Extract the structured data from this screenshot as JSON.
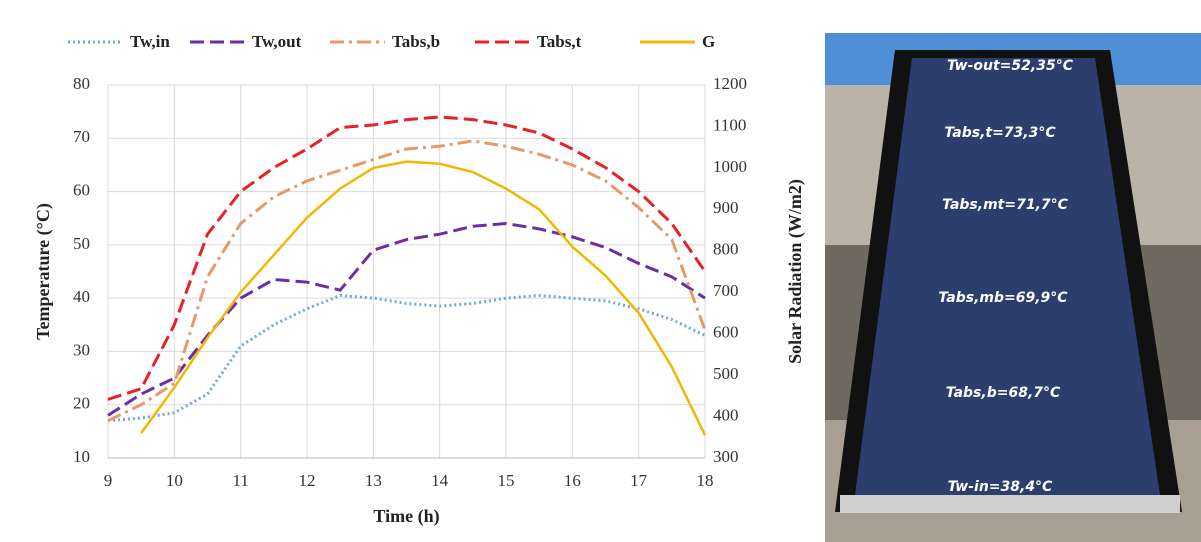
{
  "chart_data": {
    "type": "line",
    "x_label": "Time (h)",
    "y_label": "Temperature (°C)",
    "y2_label": "Solar Radiation (W/m2)",
    "x": [
      9,
      9.5,
      10,
      10.5,
      11,
      11.5,
      12,
      12.5,
      13,
      13.5,
      14,
      14.5,
      15,
      15.5,
      16,
      16.5,
      17,
      17.5,
      18
    ],
    "xlim": [
      9,
      18
    ],
    "xticks": [
      9,
      10,
      11,
      12,
      13,
      14,
      15,
      16,
      17,
      18
    ],
    "ylim": [
      10,
      80
    ],
    "yticks": [
      10,
      20,
      30,
      40,
      50,
      60,
      70,
      80
    ],
    "y2lim": [
      300,
      1200
    ],
    "y2ticks": [
      300,
      400,
      500,
      600,
      700,
      800,
      900,
      1000,
      1100,
      1200
    ],
    "grid": true,
    "series": [
      {
        "name": "Tw,in",
        "color": "#6fa8dc",
        "style": "dotted",
        "values": [
          17,
          17.5,
          18.5,
          22,
          31,
          35,
          38,
          40.5,
          40,
          39,
          38.5,
          39,
          40,
          40.5,
          40,
          39.5,
          38,
          36,
          33
        ]
      },
      {
        "name": "Tw,out",
        "color": "#6a2fa6",
        "style": "dashed",
        "values": [
          18,
          22,
          25,
          33,
          40,
          43.5,
          43,
          41.5,
          49,
          51,
          52,
          53.5,
          54,
          53,
          51.5,
          49.5,
          46.5,
          44,
          40
        ]
      },
      {
        "name": "Tabs,b",
        "color": "#e69a6a",
        "style": "dashdot",
        "values": [
          17,
          20,
          24,
          44,
          54,
          59,
          62,
          64,
          66,
          68,
          68.5,
          69.5,
          68.5,
          67,
          65,
          62,
          57,
          51,
          34
        ]
      },
      {
        "name": "Tabs,t",
        "color": "#e8202a",
        "style": "dashed",
        "values": [
          21,
          23,
          35,
          52,
          60,
          64.5,
          68,
          72,
          72.5,
          73.5,
          74,
          73.5,
          72.5,
          71,
          68,
          64.5,
          60,
          54,
          45
        ]
      },
      {
        "name": "G",
        "color": "#f2b705",
        "style": "solid",
        "axis": "y2",
        "values": [
          null,
          360,
          470,
          590,
          700,
          790,
          880,
          950,
          1000,
          1015,
          1010,
          990,
          950,
          900,
          810,
          740,
          650,
          520,
          355
        ]
      }
    ]
  },
  "photo": {
    "labels": [
      "Tw-out=52,35°C",
      "Tabs,t=73,3°C",
      "Tabs,mt=71,7°C",
      "Tabs,mb=69,9°C",
      "Tabs,b=68,7°C",
      "Tw-in=38,4°C"
    ]
  }
}
